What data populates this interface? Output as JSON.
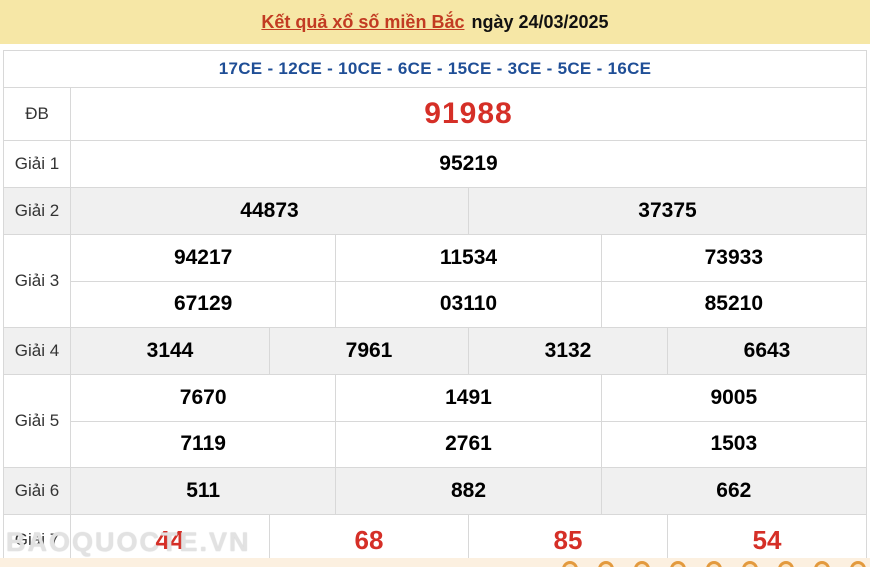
{
  "header": {
    "title": "Kết quả xổ số miền Bắc",
    "date": "ngày 24/03/2025"
  },
  "subheader": {
    "codes": "17CE - 12CE - 10CE - 6CE - 15CE - 3CE - 5CE - 16CE"
  },
  "table": {
    "rows": [
      {
        "id": "db",
        "label": "ĐB",
        "style": "special",
        "numbers": [
          [
            "91988"
          ]
        ]
      },
      {
        "id": "giai1",
        "label": "Giải 1",
        "numbers": [
          [
            "95219"
          ]
        ]
      },
      {
        "id": "giai2",
        "label": "Giải 2",
        "numbers": [
          [
            "44873",
            "37375"
          ]
        ]
      },
      {
        "id": "giai3",
        "label": "Giải 3",
        "numbers": [
          [
            "94217",
            "11534",
            "73933"
          ],
          [
            "67129",
            "03110",
            "85210"
          ]
        ]
      },
      {
        "id": "giai4",
        "label": "Giải 4",
        "numbers": [
          [
            "3144",
            "7961",
            "3132",
            "6643"
          ]
        ]
      },
      {
        "id": "giai5",
        "label": "Giải 5",
        "numbers": [
          [
            "7670",
            "1491",
            "9005"
          ],
          [
            "7119",
            "2761",
            "1503"
          ]
        ]
      },
      {
        "id": "giai6",
        "label": "Giải 6",
        "numbers": [
          [
            "511",
            "882",
            "662"
          ]
        ]
      },
      {
        "id": "giai7",
        "label": "Giải 7",
        "style": "red",
        "numbers": [
          [
            "44",
            "68",
            "85",
            "54"
          ]
        ]
      }
    ]
  },
  "watermark": "BAOQUOCTE.VN",
  "footer": {
    "dot_count": 9
  },
  "colors": {
    "band_bg": "#f6e7a6",
    "title_red": "#c23b22",
    "codes_blue": "#1f4e96",
    "number_red": "#d52f27",
    "row_shade": "#f0f0f0",
    "border": "#d8d8d8",
    "strip_bg": "#fcf0e0",
    "dot_orange": "#e39a3e"
  }
}
